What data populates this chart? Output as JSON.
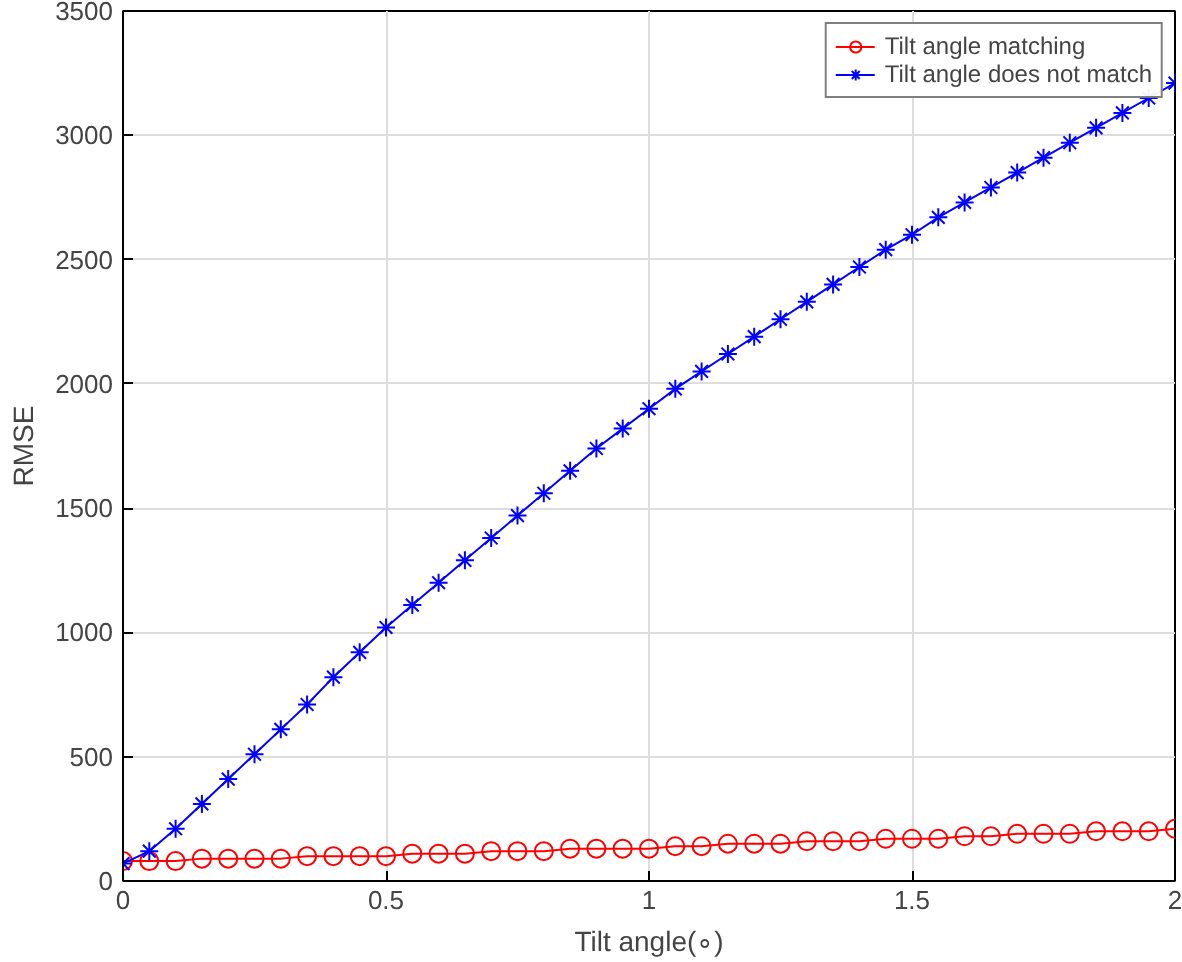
{
  "chart_data": {
    "type": "line",
    "xlabel": "Tilt angle(∘)",
    "ylabel": "RMSE",
    "x": [
      0,
      0.05,
      0.1,
      0.15,
      0.2,
      0.25,
      0.3,
      0.35,
      0.4,
      0.45,
      0.5,
      0.55,
      0.6,
      0.65,
      0.7,
      0.75,
      0.8,
      0.85,
      0.9,
      0.95,
      1.0,
      1.05,
      1.1,
      1.15,
      1.2,
      1.25,
      1.3,
      1.35,
      1.4,
      1.45,
      1.5,
      1.55,
      1.6,
      1.65,
      1.7,
      1.75,
      1.8,
      1.85,
      1.9,
      1.95,
      2.0
    ],
    "series": [
      {
        "name": "Tilt angle matching",
        "color": "#ff0000",
        "marker": "circle",
        "values": [
          80,
          80,
          80,
          90,
          90,
          90,
          90,
          100,
          100,
          100,
          100,
          110,
          110,
          110,
          120,
          120,
          120,
          130,
          130,
          130,
          130,
          140,
          140,
          150,
          150,
          150,
          160,
          160,
          160,
          170,
          170,
          170,
          180,
          180,
          190,
          190,
          190,
          200,
          200,
          200,
          210
        ]
      },
      {
        "name": "Tilt angle does not match",
        "color": "#0000ff",
        "marker": "cross",
        "values": [
          70,
          120,
          210,
          310,
          410,
          510,
          610,
          710,
          820,
          920,
          1020,
          1110,
          1200,
          1290,
          1380,
          1470,
          1560,
          1650,
          1740,
          1820,
          1900,
          1980,
          2050,
          2120,
          2190,
          2260,
          2330,
          2400,
          2470,
          2540,
          2600,
          2670,
          2730,
          2790,
          2850,
          2910,
          2970,
          3030,
          3090,
          3150,
          3210
        ]
      }
    ],
    "xlim": [
      0,
      2
    ],
    "ylim": [
      0,
      3500
    ],
    "xticks": [
      0,
      0.5,
      1,
      1.5,
      2
    ],
    "yticks": [
      0,
      500,
      1000,
      1500,
      2000,
      2500,
      3000,
      3500
    ],
    "grid": true,
    "legend": "top right",
    "line_style": "solid"
  }
}
